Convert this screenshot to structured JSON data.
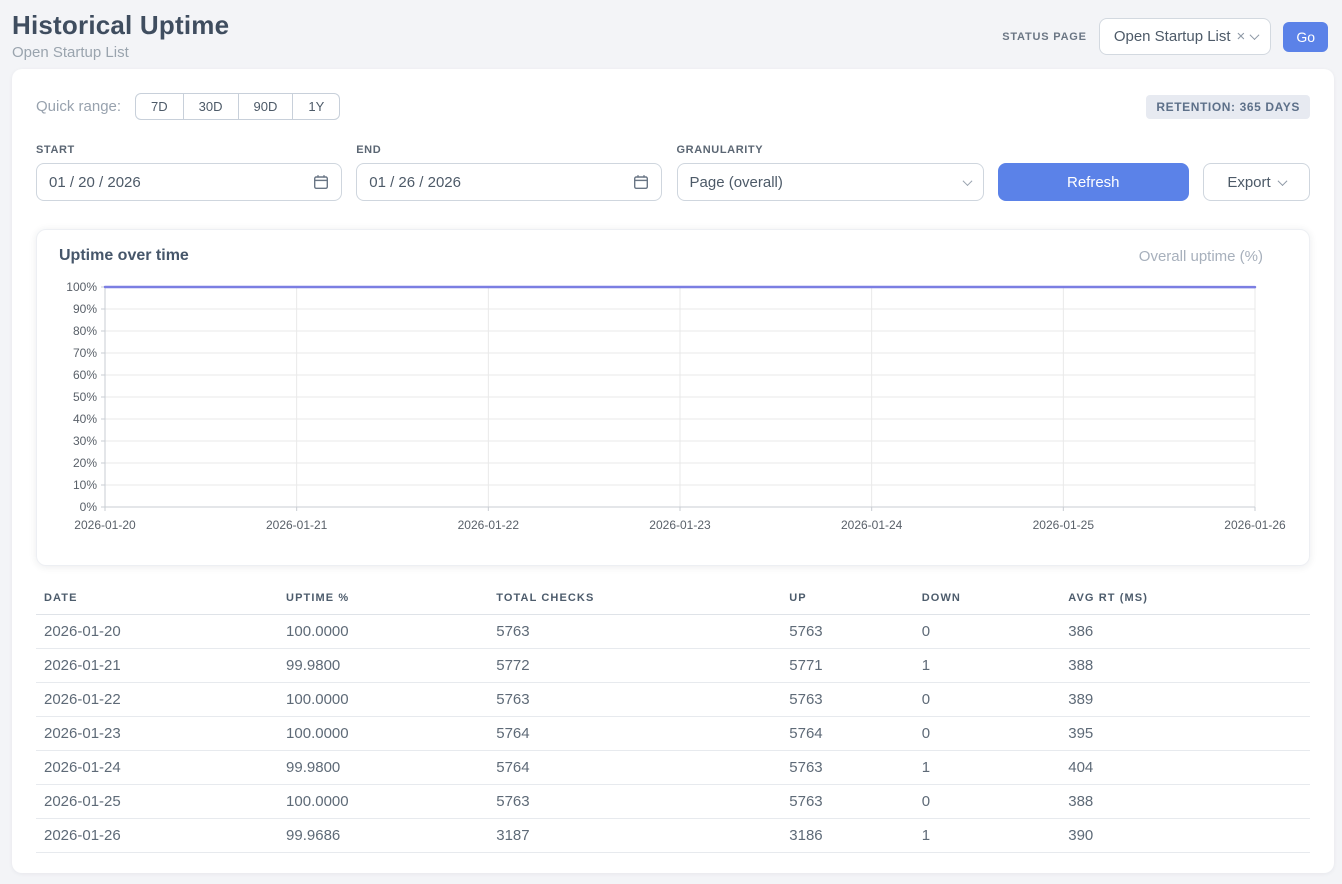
{
  "page": {
    "title": "Historical Uptime",
    "subtitle": "Open Startup List"
  },
  "header": {
    "status_page_label": "STATUS PAGE",
    "status_select": {
      "value": "Open Startup List",
      "clear_icon": "×"
    },
    "go_label": "Go"
  },
  "controls": {
    "quick_range_label": "Quick range:",
    "quick_range_options": [
      "7D",
      "30D",
      "90D",
      "1Y"
    ],
    "retention_badge": "RETENTION: 365 DAYS",
    "start_label": "START",
    "start_value": "01 / 20 / 2026",
    "end_label": "END",
    "end_value": "01 / 26 / 2026",
    "granularity_label": "GRANULARITY",
    "granularity_value": "Page (overall)",
    "refresh_label": "Refresh",
    "export_label": "Export"
  },
  "chart_card": {
    "title": "Uptime over time",
    "legend": "Overall uptime (%)"
  },
  "chart_data": {
    "type": "line",
    "title": "Uptime over time",
    "legend_entries": [
      "Overall uptime (%)"
    ],
    "legend_position": "top-right",
    "x": [
      "2026-01-20",
      "2026-01-21",
      "2026-01-22",
      "2026-01-23",
      "2026-01-24",
      "2026-01-25",
      "2026-01-26"
    ],
    "series": [
      {
        "name": "Overall uptime (%)",
        "values": [
          100.0,
          99.98,
          100.0,
          100.0,
          99.98,
          100.0,
          99.9686
        ]
      }
    ],
    "ylim": [
      0,
      100
    ],
    "ytick_step": 10,
    "ytick_suffix": "%",
    "grid": true,
    "line_color": "#7b7ee2",
    "grid_color": "#e9e9e9",
    "axis_color": "#c9cdd3",
    "tick_label_color": "#596069"
  },
  "table": {
    "columns": [
      "DATE",
      "UPTIME %",
      "TOTAL CHECKS",
      "UP",
      "DOWN",
      "AVG RT (MS)"
    ],
    "rows": [
      [
        "2026-01-20",
        "100.0000",
        "5763",
        "5763",
        "0",
        "386"
      ],
      [
        "2026-01-21",
        "99.9800",
        "5772",
        "5771",
        "1",
        "388"
      ],
      [
        "2026-01-22",
        "100.0000",
        "5763",
        "5763",
        "0",
        "389"
      ],
      [
        "2026-01-23",
        "100.0000",
        "5764",
        "5764",
        "0",
        "395"
      ],
      [
        "2026-01-24",
        "99.9800",
        "5764",
        "5763",
        "1",
        "404"
      ],
      [
        "2026-01-25",
        "100.0000",
        "5763",
        "5763",
        "0",
        "388"
      ],
      [
        "2026-01-26",
        "99.9686",
        "3187",
        "3186",
        "1",
        "390"
      ]
    ]
  },
  "colors": {
    "accent_blue": "#5b82e8",
    "chart_line": "#7b7ee2",
    "badge_bg": "#e7eaf1",
    "page_bg": "#f3f4f7"
  }
}
